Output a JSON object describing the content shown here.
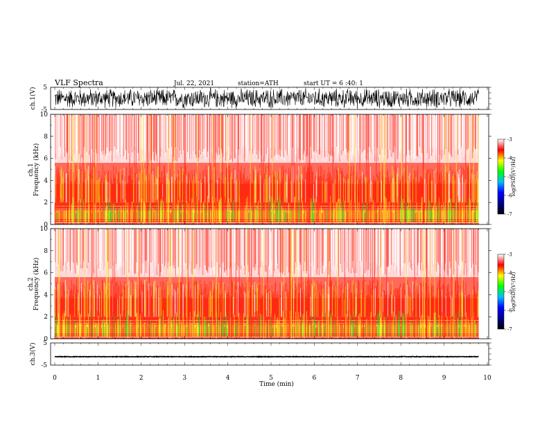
{
  "header": {
    "title": "VLF  Spectra",
    "date": "Jul.  22, 2021",
    "station": "station=ATH",
    "start_ut": "start  UT  =   6  :40: 1"
  },
  "chart_data": [
    {
      "type": "line",
      "name": "ch1-waveform",
      "ylabel": "ch.1(V)",
      "ylim": [
        -5,
        5
      ],
      "ytick_labels": [
        "5",
        "-5"
      ],
      "xlim": [
        0,
        10
      ],
      "x_extent_min": 9.8,
      "amplitude": 5,
      "style": "dense-noise"
    },
    {
      "type": "heatmap",
      "name": "ch1-spectrogram",
      "ylabel": "ch.1\nFrequency (kHz)",
      "ylim": [
        0,
        10
      ],
      "ytick_labels": [
        "0",
        "2",
        "4",
        "6",
        "8",
        "10"
      ],
      "xlim": [
        0,
        10
      ],
      "colorbar": {
        "label": "log(PSD)(V²/Hz)",
        "range": [
          -7,
          -3
        ],
        "tick_labels": [
          "-3",
          "-4",
          "-5",
          "-6",
          "-7"
        ],
        "colors": [
          "#000000",
          "#00008b",
          "#0000ff",
          "#00bfff",
          "#00ff00",
          "#ffff00",
          "#ff0000",
          "#ffffff"
        ]
      }
    },
    {
      "type": "heatmap",
      "name": "ch2-spectrogram",
      "ylabel": "ch.2\nFrequency (kHz)",
      "ylim": [
        0,
        10
      ],
      "ytick_labels": [
        "0",
        "2",
        "4",
        "6",
        "8",
        "10"
      ],
      "xlim": [
        0,
        10
      ],
      "colorbar": {
        "label": "log(PSD)(V²/Hz)",
        "range": [
          -7,
          -3
        ],
        "tick_labels": [
          "-3",
          "-4",
          "-5",
          "-6",
          "-7"
        ],
        "colors": [
          "#000000",
          "#00008b",
          "#0000ff",
          "#00bfff",
          "#00ff00",
          "#ffff00",
          "#ff0000",
          "#ffffff"
        ]
      }
    },
    {
      "type": "line",
      "name": "ch3-waveform",
      "ylabel": "ch.3(V)",
      "ylim": [
        -5,
        5
      ],
      "ytick_labels": [
        "5",
        "-5"
      ],
      "xlim": [
        0,
        10
      ],
      "x_extent_min": 9.8,
      "level": -1.2,
      "amplitude": 0.25,
      "xlabel": "Time  (min)",
      "xtick_labels": [
        "0",
        "1",
        "2",
        "3",
        "4",
        "5",
        "6",
        "7",
        "8",
        "9",
        "10"
      ]
    }
  ]
}
